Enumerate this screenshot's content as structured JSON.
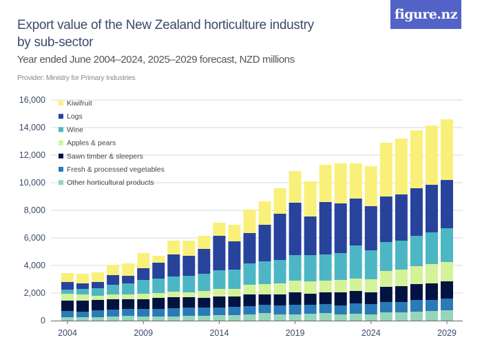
{
  "header": {
    "title": "Export value of the New Zealand horticulture industry by sub-sector",
    "subtitle": "Year ended June 2004–2024, 2025–2029 forecast, NZD millions",
    "provider": "Provider: Ministry for Primary Industries",
    "logo": "figure.nz",
    "logo_color": "#5362c7"
  },
  "chart_data": {
    "type": "bar",
    "stacked": true,
    "title": "Export value of the New Zealand horticulture industry by sub-sector",
    "subtitle": "Year ended June 2004–2024, 2025–2029 forecast, NZD millions",
    "xlabel": "",
    "ylabel": "",
    "ylim": [
      0,
      16000
    ],
    "yticks": [
      "0",
      "2,000",
      "4,000",
      "6,000",
      "8,000",
      "10,000",
      "12,000",
      "14,000",
      "16,000"
    ],
    "xticks": [
      "2004",
      "2009",
      "2014",
      "2019",
      "2024",
      "2029"
    ],
    "grid": true,
    "legend_position": "top-left",
    "categories": [
      2004,
      2005,
      2006,
      2007,
      2008,
      2009,
      2010,
      2011,
      2012,
      2013,
      2014,
      2015,
      2016,
      2017,
      2018,
      2019,
      2020,
      2021,
      2022,
      2023,
      2024,
      2025,
      2026,
      2027,
      2028,
      2029
    ],
    "series": [
      {
        "name": "Other horticultural products",
        "color": "#96d5b9",
        "values": [
          250,
          250,
          250,
          300,
          350,
          300,
          300,
          300,
          350,
          350,
          400,
          400,
          450,
          550,
          450,
          450,
          500,
          550,
          450,
          500,
          450,
          600,
          600,
          650,
          700,
          750
        ]
      },
      {
        "name": "Fresh & processed vegetables",
        "color": "#2a7ab8",
        "values": [
          450,
          400,
          500,
          500,
          500,
          550,
          550,
          600,
          600,
          600,
          550,
          600,
          600,
          600,
          650,
          700,
          650,
          650,
          650,
          750,
          750,
          750,
          750,
          850,
          800,
          850
        ]
      },
      {
        "name": "Sawn timber & sleepers",
        "color": "#021341",
        "values": [
          750,
          800,
          750,
          750,
          700,
          700,
          800,
          800,
          750,
          700,
          800,
          750,
          850,
          750,
          800,
          900,
          800,
          850,
          950,
          900,
          850,
          1100,
          1150,
          1150,
          1200,
          1250
        ]
      },
      {
        "name": "Apples & pears",
        "color": "#d4f297",
        "values": [
          500,
          450,
          300,
          350,
          350,
          400,
          350,
          400,
          350,
          500,
          550,
          550,
          700,
          750,
          800,
          850,
          900,
          850,
          900,
          900,
          950,
          1150,
          1200,
          1300,
          1400,
          1400
        ]
      },
      {
        "name": "Wine",
        "color": "#4db6c4",
        "values": [
          300,
          400,
          550,
          700,
          800,
          1000,
          1050,
          1100,
          1200,
          1250,
          1350,
          1400,
          1550,
          1650,
          1700,
          1850,
          1900,
          1900,
          1950,
          2400,
          2100,
          2100,
          2100,
          2200,
          2300,
          2450
        ]
      },
      {
        "name": "Logs",
        "color": "#27439c",
        "values": [
          550,
          400,
          450,
          700,
          550,
          850,
          1150,
          1600,
          1450,
          1800,
          2500,
          2050,
          2200,
          2650,
          3350,
          3800,
          2800,
          3800,
          3600,
          3400,
          3200,
          3300,
          3350,
          3450,
          3450,
          3500
        ]
      },
      {
        "name": "Kiwifruit",
        "color": "#f9f07a",
        "values": [
          650,
          700,
          700,
          750,
          900,
          1100,
          500,
          1000,
          1100,
          950,
          950,
          1200,
          1700,
          1700,
          1850,
          2300,
          2550,
          2700,
          2900,
          2550,
          2900,
          3900,
          4050,
          4200,
          4300,
          4400
        ]
      }
    ]
  }
}
